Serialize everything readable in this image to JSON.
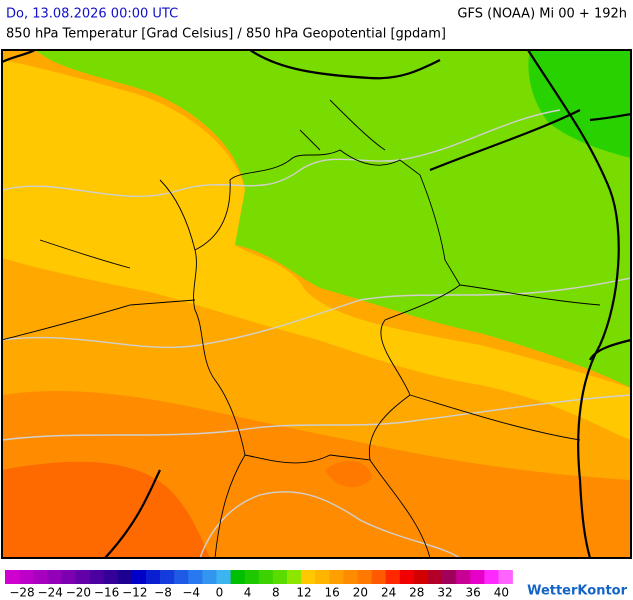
{
  "header": {
    "datetime": "Do, 13.08.2026 00:00 UTC",
    "model": "GFS (NOAA) Mi 00 + 192h",
    "subtitle": "850 hPa Temperatur [Grad Celsius] / 850 hPa Geopotential [gpdam]"
  },
  "colorbar": {
    "colors": [
      "#d000d0",
      "#bc00c8",
      "#a800c0",
      "#9400b8",
      "#7c00b0",
      "#6400a8",
      "#4c00a0",
      "#340098",
      "#1c0090",
      "#0000c8",
      "#0a1ed2",
      "#143cdc",
      "#1e5ae6",
      "#2878f0",
      "#3296f0",
      "#3cb4f0",
      "#00be00",
      "#1ec800",
      "#3cd200",
      "#5adc00",
      "#8ce600",
      "#ffc800",
      "#ffb400",
      "#ffa000",
      "#ff8c00",
      "#ff7800",
      "#ff5a00",
      "#ff2800",
      "#f00000",
      "#d20000",
      "#b40028",
      "#a0005a",
      "#c80096",
      "#e600c8",
      "#ff28ff",
      "#ff64ff"
    ],
    "ticks": [
      {
        "value": -28,
        "label": "−28"
      },
      {
        "value": -24,
        "label": "−24"
      },
      {
        "value": -20,
        "label": "−20"
      },
      {
        "value": -16,
        "label": "−16"
      },
      {
        "value": -12,
        "label": "−12"
      },
      {
        "value": -8,
        "label": "−8"
      },
      {
        "value": -4,
        "label": "−4"
      },
      0,
      4,
      8,
      12,
      16,
      20,
      24,
      28,
      32,
      36,
      40
    ]
  },
  "brand": "WetterKontor"
}
